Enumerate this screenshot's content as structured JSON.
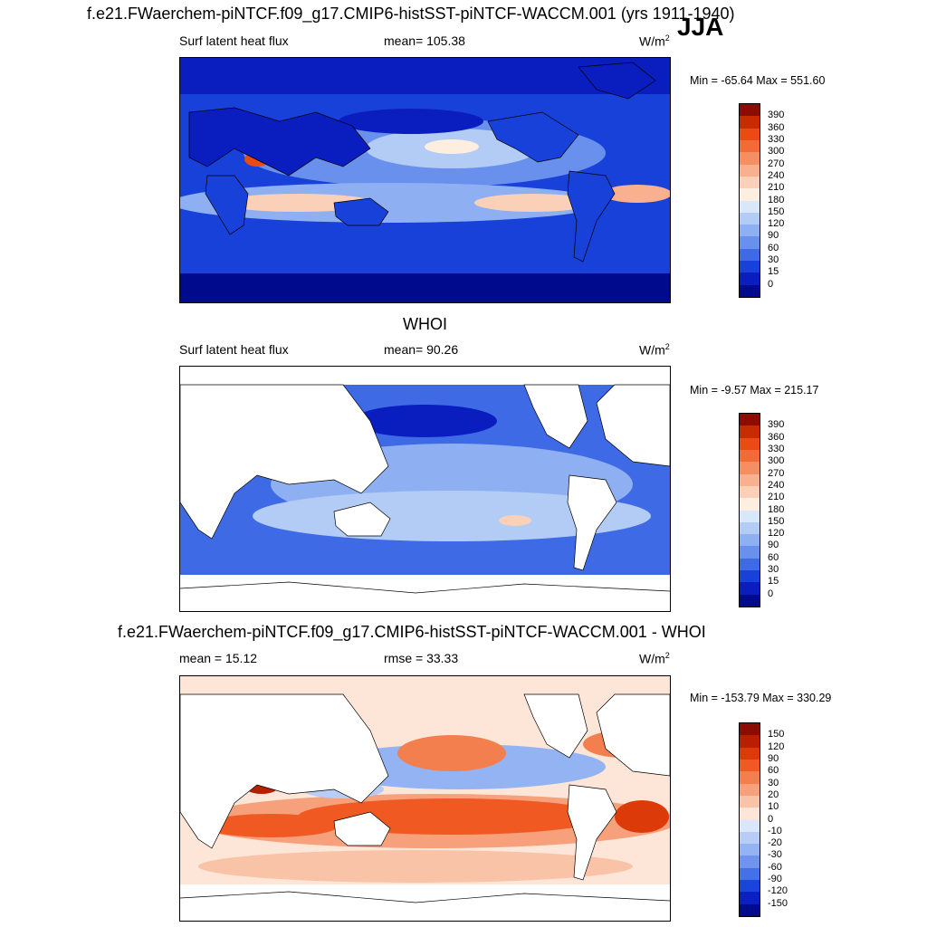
{
  "header": {
    "title": "f.e21.FWaerchem-piNTCF.f09_g17.CMIP6-histSST-piNTCF-WACCM.001 (yrs 1911-1940)",
    "season": "JJA"
  },
  "panels": [
    {
      "id": "model",
      "subtitle": "",
      "left_label": "Surf latent heat flux",
      "center_label": "mean= 105.38",
      "units_base": "W/m",
      "units_exp": "2",
      "minmax": "Min = -65.64 Max = 551.60",
      "colorbar": {
        "levels": [
          "390",
          "360",
          "330",
          "300",
          "270",
          "240",
          "210",
          "180",
          "150",
          "120",
          "90",
          "60",
          "30",
          "15",
          "0"
        ],
        "colors": [
          "#8b0c00",
          "#c72c00",
          "#ea4a14",
          "#f26a36",
          "#f58e61",
          "#f8b08f",
          "#fbd0b8",
          "#fdeee0",
          "#d9e7fa",
          "#b3ccf5",
          "#8eb0f2",
          "#6a90ee",
          "#3f6ae6",
          "#1841d9",
          "#0a1ec0",
          "#000a8c"
        ]
      },
      "map_style": "model"
    },
    {
      "id": "obs",
      "subtitle": "WHOI",
      "left_label": "Surf latent heat flux",
      "center_label": "mean=  90.26",
      "units_base": "W/m",
      "units_exp": "2",
      "minmax": "Min =  -9.57 Max = 215.17",
      "colorbar": {
        "levels": [
          "390",
          "360",
          "330",
          "300",
          "270",
          "240",
          "210",
          "180",
          "150",
          "120",
          "90",
          "60",
          "30",
          "15",
          "0"
        ],
        "colors": [
          "#8b0c00",
          "#c72c00",
          "#ea4a14",
          "#f26a36",
          "#f58e61",
          "#f8b08f",
          "#fbd0b8",
          "#fdeee0",
          "#d9e7fa",
          "#b3ccf5",
          "#8eb0f2",
          "#6a90ee",
          "#3f6ae6",
          "#1841d9",
          "#0a1ec0",
          "#000a8c"
        ]
      },
      "map_style": "obs"
    },
    {
      "id": "diff",
      "subtitle": "f.e21.FWaerchem-piNTCF.f09_g17.CMIP6-histSST-piNTCF-WACCM.001 - WHOI",
      "left_label": "mean =  15.12",
      "center_label": "rmse =  33.33",
      "units_base": "W/m",
      "units_exp": "2",
      "minmax": "Min = -153.79 Max = 330.29",
      "colorbar": {
        "levels": [
          "150",
          "120",
          "90",
          "60",
          "30",
          "20",
          "10",
          "0",
          "-10",
          "-20",
          "-30",
          "-60",
          "-90",
          "-120",
          "-150"
        ],
        "colors": [
          "#8b0c00",
          "#b81e00",
          "#dd3a0a",
          "#f05a22",
          "#f37e4e",
          "#f6a07c",
          "#f9c3a8",
          "#fde6d8",
          "#dae6fb",
          "#b7cdf6",
          "#94b3f2",
          "#6f93ee",
          "#4470e8",
          "#1a45db",
          "#0a20c0",
          "#000a8c"
        ]
      },
      "map_style": "diff"
    }
  ]
}
